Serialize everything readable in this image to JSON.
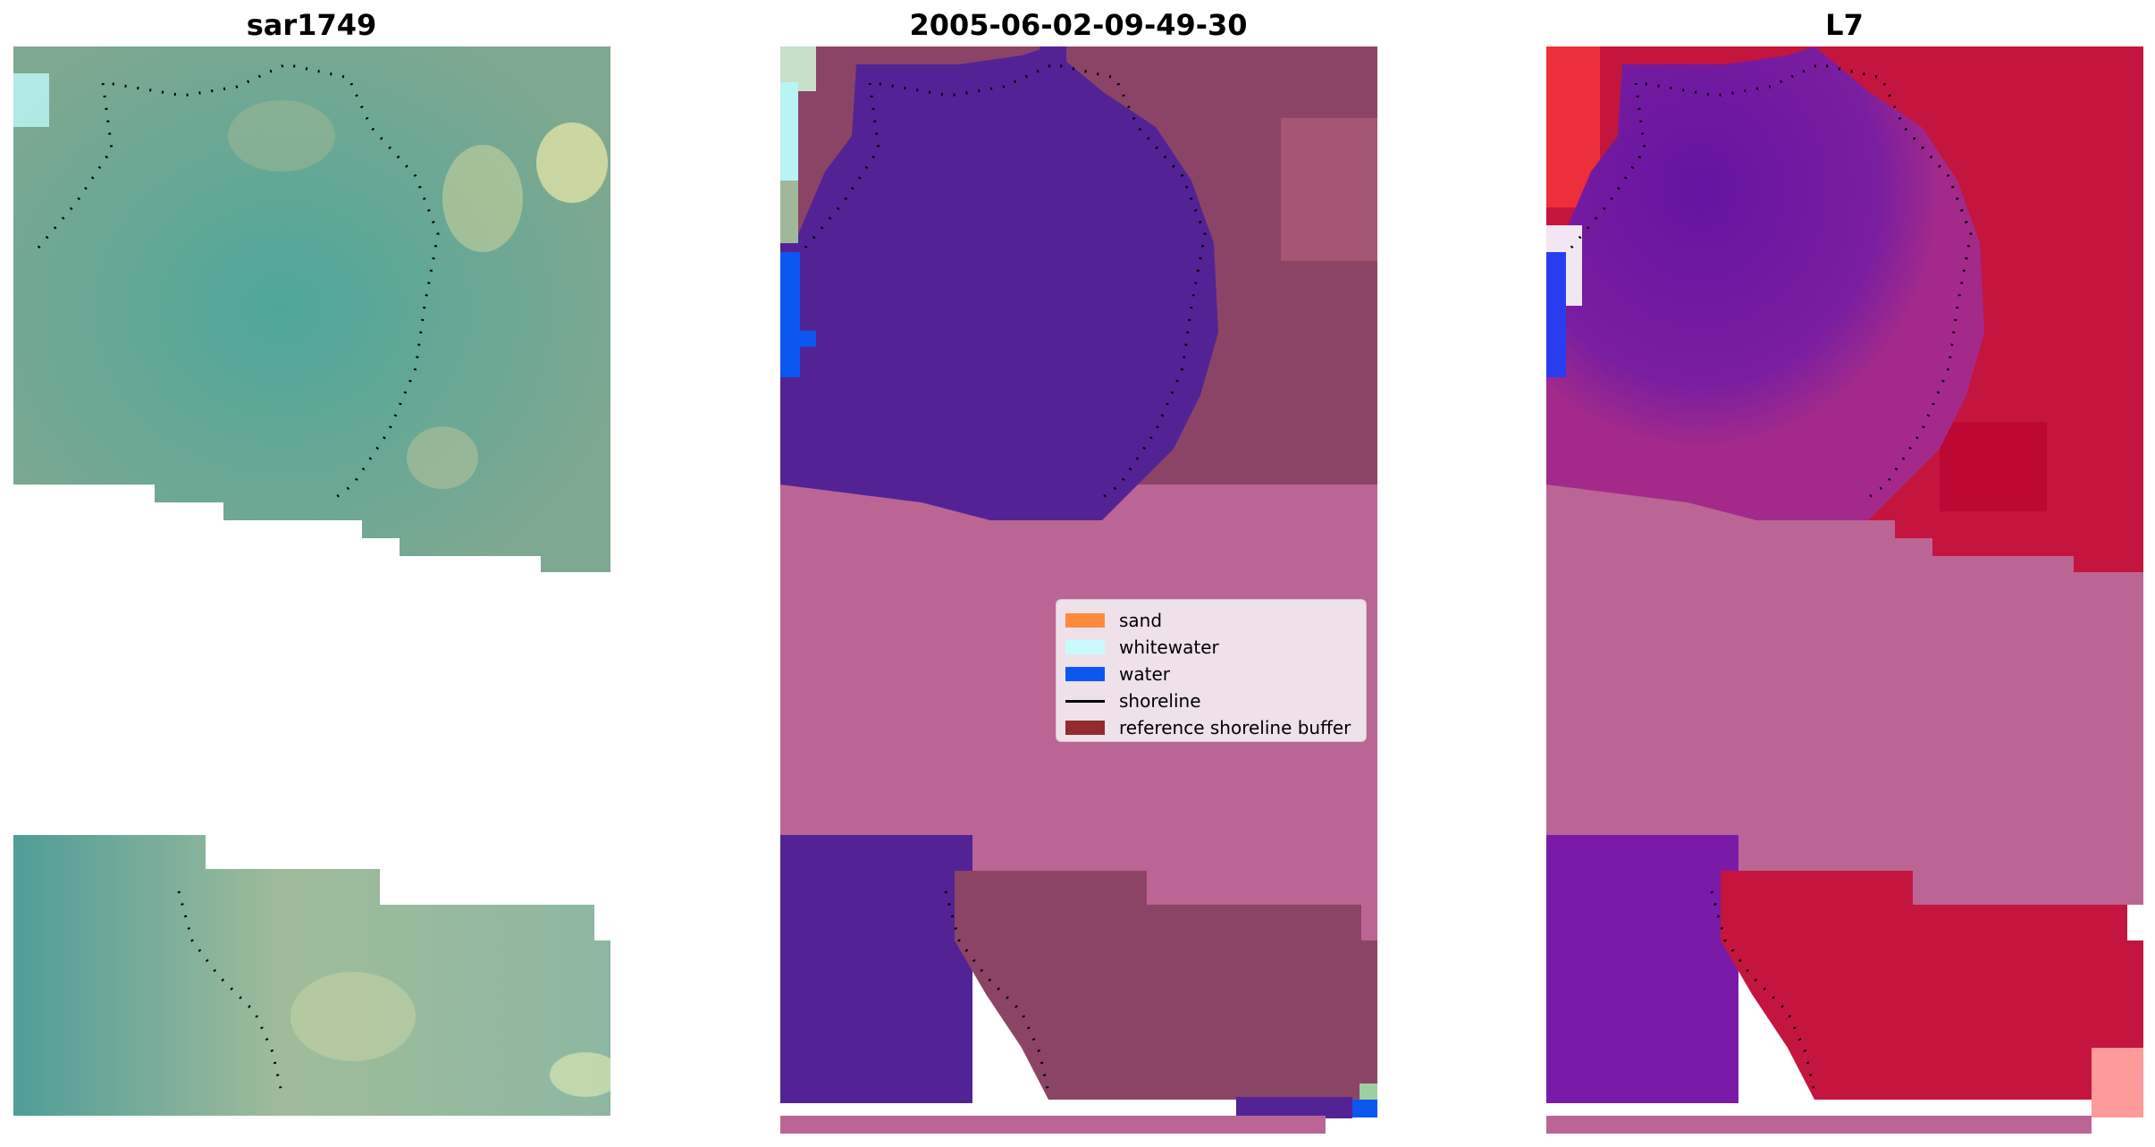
{
  "panels": [
    {
      "title": "sar1749"
    },
    {
      "title": "2005-06-02-09-49-30"
    },
    {
      "title": "L7"
    }
  ],
  "legend": {
    "items": [
      {
        "label": "sand",
        "color": "#ff8a3d"
      },
      {
        "label": "whitewater",
        "color": "#c9fbfb"
      },
      {
        "label": "water",
        "color": "#0b57f0"
      },
      {
        "label": "shoreline",
        "color": "#000000"
      },
      {
        "label": "reference shoreline buffer",
        "color": "#922a2e"
      }
    ]
  },
  "colors": {
    "rgb_sea": "#5e9a8f",
    "rgb_land": "#9bb292",
    "classified_water": "#532395",
    "classified_land": "#8c4466",
    "buffer_pink": "#bb6595",
    "mndwi_water": "#6a1aa0",
    "mndwi_land": "#c4153f"
  }
}
